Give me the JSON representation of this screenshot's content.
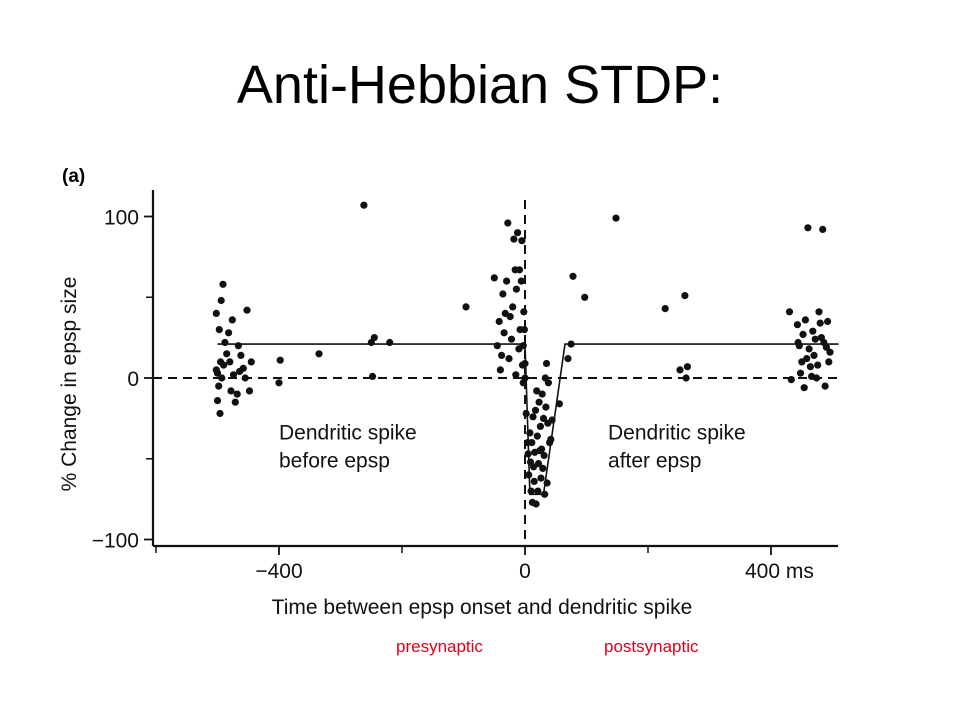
{
  "slide": {
    "title": "Anti-Hebbian STDP:",
    "panel_label": "(a)",
    "bottom_labels": [
      "presynaptic",
      "postsynaptic"
    ],
    "label_color": "#e0001b"
  },
  "chart_data": {
    "type": "scatter",
    "ylabel": "% Change in epsp size",
    "xlabel": "Time between epsp onset and dendritic spike",
    "xlim": [
      -600,
      500
    ],
    "ylim": [
      -100,
      110
    ],
    "x_ticks": [
      {
        "value": -400,
        "label": "−400"
      },
      {
        "value": 0,
        "label": "0"
      },
      {
        "value": 400,
        "label": "400 ms"
      }
    ],
    "x_minor_ticks": [
      -200,
      200
    ],
    "y_ticks": [
      {
        "value": 100,
        "label": "100"
      },
      {
        "value": 0,
        "label": "0"
      },
      {
        "value": -100,
        "label": "−100"
      }
    ],
    "y_minor_ticks": [
      50,
      -50
    ],
    "reference_lines": {
      "x": 0,
      "y": 0,
      "style": "dashed"
    },
    "annotations": [
      {
        "lines": [
          "Dendritic spike",
          "before epsp"
        ],
        "x": -400,
        "y": -38
      },
      {
        "lines": [
          "Dendritic spike",
          "after epsp"
        ],
        "x": 135,
        "y": -38
      }
    ],
    "fit_curve": [
      [
        -500,
        21
      ],
      [
        0,
        21
      ],
      [
        8,
        -72
      ],
      [
        30,
        -72
      ],
      [
        65,
        21
      ],
      [
        510,
        21
      ]
    ],
    "points": [
      [
        -502,
        40
      ],
      [
        -497,
        30
      ],
      [
        -494,
        48
      ],
      [
        -491,
        58
      ],
      [
        -500,
        3
      ],
      [
        -498,
        -5
      ],
      [
        -495,
        10
      ],
      [
        -502,
        5
      ],
      [
        -500,
        -14
      ],
      [
        -496,
        -22
      ],
      [
        -493,
        0
      ],
      [
        -490,
        8
      ],
      [
        -488,
        22
      ],
      [
        -485,
        15
      ],
      [
        -482,
        28
      ],
      [
        -480,
        10
      ],
      [
        -478,
        -8
      ],
      [
        -476,
        36
      ],
      [
        -474,
        2
      ],
      [
        -471,
        -15
      ],
      [
        -468,
        -10
      ],
      [
        -466,
        20
      ],
      [
        -464,
        4
      ],
      [
        -462,
        14
      ],
      [
        -458,
        6
      ],
      [
        -455,
        0
      ],
      [
        -452,
        42
      ],
      [
        -448,
        -8
      ],
      [
        -445,
        10
      ],
      [
        -400,
        -3
      ],
      [
        -398,
        11
      ],
      [
        -335,
        15
      ],
      [
        -262,
        107
      ],
      [
        -250,
        22
      ],
      [
        -245,
        25
      ],
      [
        -248,
        1
      ],
      [
        -220,
        22
      ],
      [
        -96,
        44
      ],
      [
        -50,
        62
      ],
      [
        -45,
        20
      ],
      [
        -42,
        35
      ],
      [
        -40,
        5
      ],
      [
        -38,
        14
      ],
      [
        -36,
        52
      ],
      [
        -34,
        28
      ],
      [
        -32,
        40
      ],
      [
        -30,
        60
      ],
      [
        -28,
        96
      ],
      [
        -26,
        12
      ],
      [
        -24,
        38
      ],
      [
        -22,
        24
      ],
      [
        -20,
        44
      ],
      [
        -18,
        86
      ],
      [
        -16,
        67
      ],
      [
        -15,
        2
      ],
      [
        -14,
        55
      ],
      [
        -12,
        90
      ],
      [
        -10,
        18
      ],
      [
        -9,
        67
      ],
      [
        -8,
        30
      ],
      [
        -6,
        60
      ],
      [
        -5,
        85
      ],
      [
        -4,
        8
      ],
      [
        -3,
        20
      ],
      [
        -2,
        41
      ],
      [
        -1,
        30
      ],
      [
        0,
        0
      ],
      [
        0,
        9
      ],
      [
        -3,
        -3
      ],
      [
        2,
        -22
      ],
      [
        4,
        -40
      ],
      [
        5,
        -47
      ],
      [
        6,
        -60
      ],
      [
        8,
        -34
      ],
      [
        9,
        -52
      ],
      [
        10,
        -70
      ],
      [
        11,
        -40
      ],
      [
        12,
        -77
      ],
      [
        13,
        -24
      ],
      [
        14,
        -55
      ],
      [
        15,
        -64
      ],
      [
        16,
        -46
      ],
      [
        17,
        -20
      ],
      [
        18,
        -78
      ],
      [
        19,
        -8
      ],
      [
        20,
        -36
      ],
      [
        21,
        -70
      ],
      [
        22,
        -53
      ],
      [
        23,
        -15
      ],
      [
        24,
        -45
      ],
      [
        25,
        -30
      ],
      [
        26,
        -62
      ],
      [
        27,
        -44
      ],
      [
        28,
        -10
      ],
      [
        29,
        -56
      ],
      [
        30,
        -25
      ],
      [
        31,
        -48
      ],
      [
        32,
        -72
      ],
      [
        33,
        0
      ],
      [
        34,
        -18
      ],
      [
        35,
        9
      ],
      [
        36,
        -65
      ],
      [
        37,
        -28
      ],
      [
        38,
        -3
      ],
      [
        40,
        -40
      ],
      [
        42,
        -38
      ],
      [
        44,
        -26
      ],
      [
        56,
        -16
      ],
      [
        70,
        12
      ],
      [
        75,
        21
      ],
      [
        78,
        63
      ],
      [
        97,
        50
      ],
      [
        148,
        99
      ],
      [
        228,
        43
      ],
      [
        252,
        5
      ],
      [
        260,
        51
      ],
      [
        262,
        0
      ],
      [
        264,
        7
      ],
      [
        430,
        41
      ],
      [
        433,
        -1
      ],
      [
        443,
        33
      ],
      [
        444,
        22
      ],
      [
        446,
        20
      ],
      [
        448,
        3
      ],
      [
        450,
        10
      ],
      [
        452,
        27
      ],
      [
        454,
        -6
      ],
      [
        456,
        36
      ],
      [
        458,
        12
      ],
      [
        460,
        93
      ],
      [
        462,
        18
      ],
      [
        464,
        7
      ],
      [
        466,
        1
      ],
      [
        468,
        29
      ],
      [
        470,
        14
      ],
      [
        472,
        24
      ],
      [
        474,
        0
      ],
      [
        476,
        8
      ],
      [
        478,
        41
      ],
      [
        480,
        34
      ],
      [
        482,
        25
      ],
      [
        484,
        92
      ],
      [
        486,
        22
      ],
      [
        488,
        -5
      ],
      [
        490,
        19
      ],
      [
        492,
        35
      ],
      [
        494,
        10
      ],
      [
        496,
        16
      ]
    ],
    "grid": false,
    "legend": "none"
  }
}
